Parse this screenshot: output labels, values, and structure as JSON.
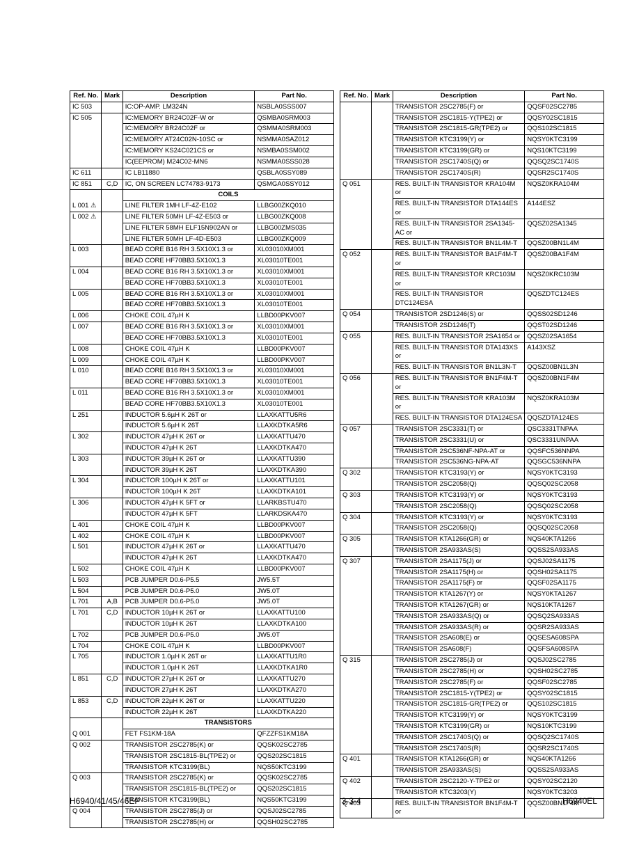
{
  "headers": {
    "ref": "Ref. No.",
    "mark": "Mark",
    "desc": "Description",
    "part": "Part No."
  },
  "sections": {
    "coils": "COILS",
    "transistors": "TRANSISTORS"
  },
  "footer": {
    "left": "H6940/41/45/46EP",
    "center": "3-3-4",
    "right": "H6940EL"
  },
  "left_ics": [
    {
      "r": "IC 503",
      "m": "",
      "d": "IC:OP-AMP. LM324N",
      "p": "NSBLA0SSS007"
    },
    {
      "r": "IC 505",
      "m": "",
      "d": "IC:MEMORY BR24C02F-W or",
      "p": "QSMBA0SRM003"
    },
    {
      "r": "",
      "m": "",
      "d": "IC:MEMORY BR24C02F or",
      "p": "QSMMA0SRM003"
    },
    {
      "r": "",
      "m": "",
      "d": "IC:MEMORY AT24C02N-10SC or",
      "p": "NSMMA0SAZ012"
    },
    {
      "r": "",
      "m": "",
      "d": "IC:MEMORY KS24C021CS or",
      "p": "NSMBA0SSM002"
    },
    {
      "r": "",
      "m": "",
      "d": "IC(EEPROM) M24C02-MN6",
      "p": "NSMMA0SSS028"
    },
    {
      "r": "IC 611",
      "m": "",
      "d": "IC LB11880",
      "p": "QSBLA0SSY089"
    },
    {
      "r": "IC 851",
      "m": "C,D",
      "d": "IC, ON SCREEN LC74783-9173",
      "p": "QSMGA0SSY012"
    }
  ],
  "left_coils": [
    {
      "r": "L 001 ⚠",
      "m": "",
      "d": "LINE FILTER 1MH LF-4Z-E102",
      "p": "LLBG00ZKQ010"
    },
    {
      "r": "L 002 ⚠",
      "m": "",
      "d": "LINE FILTER 50MH LF-4Z-E503 or",
      "p": "LLBG00ZKQ008"
    },
    {
      "r": "",
      "m": "",
      "d": "LINE FILTER 58MH ELF15N902AN or",
      "p": "LLBG00ZMS035"
    },
    {
      "r": "",
      "m": "",
      "d": "LINE FILTER 50MH LF-4D-E503",
      "p": "LLBG00ZKQ009"
    },
    {
      "r": "L 003",
      "m": "",
      "d": "BEAD CORE B16 RH 3.5X10X1.3 or",
      "p": "XL03010XM001"
    },
    {
      "r": "",
      "m": "",
      "d": "BEAD CORE HF70BB3.5X10X1.3",
      "p": "XL03010TE001"
    },
    {
      "r": "L 004",
      "m": "",
      "d": "BEAD CORE B16 RH 3.5X10X1.3 or",
      "p": "XL03010XM001"
    },
    {
      "r": "",
      "m": "",
      "d": "BEAD CORE HF70BB3.5X10X1.3",
      "p": "XL03010TE001"
    },
    {
      "r": "L 005",
      "m": "",
      "d": "BEAD CORE B16 RH 3.5X10X1.3 or",
      "p": "XL03010XM001"
    },
    {
      "r": "",
      "m": "",
      "d": "BEAD CORE HF70BB3.5X10X1.3",
      "p": "XL03010TE001"
    },
    {
      "r": "L 006",
      "m": "",
      "d": "CHOKE COIL 47µH K",
      "p": "LLBD00PKV007"
    },
    {
      "r": "L 007",
      "m": "",
      "d": "BEAD CORE B16 RH 3.5X10X1.3 or",
      "p": "XL03010XM001"
    },
    {
      "r": "",
      "m": "",
      "d": "BEAD CORE HF70BB3.5X10X1.3",
      "p": "XL03010TE001"
    },
    {
      "r": "L 008",
      "m": "",
      "d": "CHOKE COIL 47µH K",
      "p": "LLBD00PKV007"
    },
    {
      "r": "L 009",
      "m": "",
      "d": "CHOKE COIL 47µH K",
      "p": "LLBD00PKV007"
    },
    {
      "r": "L 010",
      "m": "",
      "d": "BEAD CORE B16 RH 3.5X10X1.3 or",
      "p": "XL03010XM001"
    },
    {
      "r": "",
      "m": "",
      "d": "BEAD CORE HF70BB3.5X10X1.3",
      "p": "XL03010TE001"
    },
    {
      "r": "L 011",
      "m": "",
      "d": "BEAD CORE B16 RH 3.5X10X1.3 or",
      "p": "XL03010XM001"
    },
    {
      "r": "",
      "m": "",
      "d": "BEAD CORE HF70BB3.5X10X1.3",
      "p": "XL03010TE001"
    },
    {
      "r": "L 251",
      "m": "",
      "d": "INDUCTOR 5.6µH K 26T or",
      "p": "LLAXKATTU5R6"
    },
    {
      "r": "",
      "m": "",
      "d": "INDUCTOR 5.6µH K 26T",
      "p": "LLAXKDTKA5R6"
    },
    {
      "r": "L 302",
      "m": "",
      "d": "INDUCTOR 47µH K 26T or",
      "p": "LLAXKATTU470"
    },
    {
      "r": "",
      "m": "",
      "d": "INDUCTOR 47µH K 26T",
      "p": "LLAXKDTKA470"
    },
    {
      "r": "L 303",
      "m": "",
      "d": "INDUCTOR 39µH K 26T or",
      "p": "LLAXKATTU390"
    },
    {
      "r": "",
      "m": "",
      "d": "INDUCTOR 39µH K 26T",
      "p": "LLAXKDTKA390"
    },
    {
      "r": "L 304",
      "m": "",
      "d": "INDUCTOR 100µH K 26T or",
      "p": "LLAXKATTU101"
    },
    {
      "r": "",
      "m": "",
      "d": "INDUCTOR 100µH K 26T",
      "p": "LLAXKDTKA101"
    },
    {
      "r": "L 306",
      "m": "",
      "d": "INDUCTOR 47µH K 5FT or",
      "p": "LLARKBSTU470"
    },
    {
      "r": "",
      "m": "",
      "d": "INDUCTOR 47µH K 5FT",
      "p": "LLARKDSKA470"
    },
    {
      "r": "L 401",
      "m": "",
      "d": "CHOKE COIL 47µH K",
      "p": "LLBD00PKV007"
    },
    {
      "r": "L 402",
      "m": "",
      "d": "CHOKE COIL 47µH K",
      "p": "LLBD00PKV007"
    },
    {
      "r": "L 501",
      "m": "",
      "d": "INDUCTOR 47µH K 26T or",
      "p": "LLAXKATTU470"
    },
    {
      "r": "",
      "m": "",
      "d": "INDUCTOR 47µH K 26T",
      "p": "LLAXKDTKA470"
    },
    {
      "r": "L 502",
      "m": "",
      "d": "CHOKE COIL 47µH K",
      "p": "LLBD00PKV007"
    },
    {
      "r": "L 503",
      "m": "",
      "d": "PCB JUMPER D0.6-P5.5",
      "p": "JW5.5T"
    },
    {
      "r": "L 504",
      "m": "",
      "d": "PCB JUMPER D0.6-P5.0",
      "p": "JW5.0T"
    },
    {
      "r": "L 701",
      "m": "A,B",
      "d": "PCB JUMPER D0.6-P5.0",
      "p": "JW5.0T"
    },
    {
      "r": "L 701",
      "m": "C,D",
      "d": "INDUCTOR 10µH K 26T or",
      "p": "LLAXKATTU100"
    },
    {
      "r": "",
      "m": "",
      "d": "INDUCTOR 10µH K 26T",
      "p": "LLAXKDTKA100"
    },
    {
      "r": "L 702",
      "m": "",
      "d": "PCB JUMPER D0.6-P5.0",
      "p": "JW5.0T"
    },
    {
      "r": "L 704",
      "m": "",
      "d": "CHOKE COIL 47µH K",
      "p": "LLBD00PKV007"
    },
    {
      "r": "L 705",
      "m": "",
      "d": "INDUCTOR 1.0µH K 26T or",
      "p": "LLAXKATTU1R0"
    },
    {
      "r": "",
      "m": "",
      "d": "INDUCTOR 1.0µH K 26T",
      "p": "LLAXKDTKA1R0"
    },
    {
      "r": "L 851",
      "m": "C,D",
      "d": "INDUCTOR 27µH K 26T or",
      "p": "LLAXKATTU270"
    },
    {
      "r": "",
      "m": "",
      "d": "INDUCTOR 27µH K 26T",
      "p": "LLAXKDTKA270"
    },
    {
      "r": "L 853",
      "m": "C,D",
      "d": "INDUCTOR 22µH K 26T or",
      "p": "LLAXKATTU220"
    },
    {
      "r": "",
      "m": "",
      "d": "INDUCTOR 22µH K 26T",
      "p": "LLAXKDTKA220"
    }
  ],
  "left_trans": [
    {
      "r": "Q 001",
      "m": "",
      "d": "FET FS1KM-18A",
      "p": "QFZZFS1KM18A"
    },
    {
      "r": "Q 002",
      "m": "",
      "d": "TRANSISTOR 2SC2785(K) or",
      "p": "QQSK02SC2785"
    },
    {
      "r": "",
      "m": "",
      "d": "TRANSISTOR 2SC1815-BL(TPE2) or",
      "p": "QQS202SC1815"
    },
    {
      "r": "",
      "m": "",
      "d": "TRANSISTOR KTC3199(BL)",
      "p": "NQS50KTC3199"
    },
    {
      "r": "Q 003",
      "m": "",
      "d": "TRANSISTOR 2SC2785(K) or",
      "p": "QQSK02SC2785"
    },
    {
      "r": "",
      "m": "",
      "d": "TRANSISTOR 2SC1815-BL(TPE2) or",
      "p": "QQS202SC1815"
    },
    {
      "r": "",
      "m": "",
      "d": "TRANSISTOR KTC3199(BL)",
      "p": "NQS50KTC3199"
    },
    {
      "r": "Q 004",
      "m": "",
      "d": "TRANSISTOR 2SC2785(J) or",
      "p": "QQSJ02SC2785"
    },
    {
      "r": "",
      "m": "",
      "d": "TRANSISTOR 2SC2785(H) or",
      "p": "QQSH02SC2785"
    }
  ],
  "right": [
    {
      "r": "",
      "m": "",
      "d": "TRANSISTOR 2SC2785(F) or",
      "p": "QQSF02SC2785"
    },
    {
      "r": "",
      "m": "",
      "d": "TRANSISTOR 2SC1815-Y(TPE2) or",
      "p": "QQSY02SC1815"
    },
    {
      "r": "",
      "m": "",
      "d": "TRANSISTOR 2SC1815-GR(TPE2) or",
      "p": "QQS102SC1815"
    },
    {
      "r": "",
      "m": "",
      "d": "TRANSISTOR KTC3199(Y) or",
      "p": "NQSY0KTC3199"
    },
    {
      "r": "",
      "m": "",
      "d": "TRANSISTOR KTC3199(GR) or",
      "p": "NQS10KTC3199"
    },
    {
      "r": "",
      "m": "",
      "d": "TRANSISTOR 2SC1740S(Q) or",
      "p": "QQSQ2SC1740S"
    },
    {
      "r": "",
      "m": "",
      "d": "TRANSISTOR 2SC1740S(R)",
      "p": "QQSR2SC1740S"
    },
    {
      "r": "Q 051",
      "m": "",
      "d": "RES. BUILT-IN TRANSISTOR KRA104M or",
      "p": "NQSZ0KRA104M",
      "ind": 1
    },
    {
      "r": "",
      "m": "",
      "d": "RES. BUILT-IN TRANSISTOR DTA144ES or",
      "p": "A144ESZ",
      "ind": 1
    },
    {
      "r": "",
      "m": "",
      "d": "RES. BUILT-IN TRANSISTOR 2SA1345-AC or",
      "p": "QQSZ02SA1345",
      "ind": 1
    },
    {
      "r": "",
      "m": "",
      "d": "RES. BUILT-IN TRANSISTOR BN1L4M-T",
      "p": "QQSZ00BN1L4M"
    },
    {
      "r": "Q 052",
      "m": "",
      "d": "RES. BUILT-IN TRANSISTOR BA1F4M-T or",
      "p": "QQSZ00BA1F4M",
      "ind": 1
    },
    {
      "r": "",
      "m": "",
      "d": "RES. BUILT-IN TRANSISTOR KRC103M or",
      "p": "NQSZ0KRC103M",
      "ind": 1
    },
    {
      "r": "",
      "m": "",
      "d": "RES. BUILT-IN TRANSISTOR DTC124ESA",
      "p": "QQSZDTC124ES",
      "ind": 1
    },
    {
      "r": "Q 054",
      "m": "",
      "d": "TRANSISTOR 2SD1246(S) or",
      "p": "QQSS02SD1246"
    },
    {
      "r": "",
      "m": "",
      "d": "TRANSISTOR 2SD1246(T)",
      "p": "QQST02SD1246"
    },
    {
      "r": "Q 055",
      "m": "",
      "d": "RES. BUILT-IN TRANSISTOR 2SA1654 or",
      "p": "QQSZ02SA1654"
    },
    {
      "r": "",
      "m": "",
      "d": "RES. BUILT-IN TRANSISTOR DTA143XS or",
      "p": "A143XSZ",
      "ind": 1
    },
    {
      "r": "",
      "m": "",
      "d": "RES. BUILT-IN TRANSISTOR BN1L3N-T",
      "p": "QQSZ00BN1L3N"
    },
    {
      "r": "Q 056",
      "m": "",
      "d": "RES. BUILT-IN TRANSISTOR BN1F4M-T or",
      "p": "QQSZ00BN1F4M",
      "ind": 1
    },
    {
      "r": "",
      "m": "",
      "d": "RES. BUILT-IN TRANSISTOR KRA103M or",
      "p": "NQSZ0KRA103M",
      "ind": 1
    },
    {
      "r": "",
      "m": "",
      "d": "RES. BUILT-IN TRANSISTOR DTA124ESA",
      "p": "QQSZDTA124ES",
      "ind": 1
    },
    {
      "r": "Q 057",
      "m": "",
      "d": "TRANSISTOR 2SC3331(T) or",
      "p": "QSC3331TNPAA"
    },
    {
      "r": "",
      "m": "",
      "d": "TRANSISTOR 2SC3331(U) or",
      "p": "QSC3331UNPAA"
    },
    {
      "r": "",
      "m": "",
      "d": "TRANSISTOR 2SC536NF-NPA-AT or",
      "p": "QQSFC536NNPA"
    },
    {
      "r": "",
      "m": "",
      "d": "TRANSISTOR 2SC536NG-NPA-AT",
      "p": "QQSGC536NNPA"
    },
    {
      "r": "Q 302",
      "m": "",
      "d": "TRANSISTOR KTC3193(Y) or",
      "p": "NQSY0KTC3193"
    },
    {
      "r": "",
      "m": "",
      "d": "TRANSISTOR 2SC2058(Q)",
      "p": "QQSQ02SC2058"
    },
    {
      "r": "Q 303",
      "m": "",
      "d": "TRANSISTOR KTC3193(Y) or",
      "p": "NQSY0KTC3193"
    },
    {
      "r": "",
      "m": "",
      "d": "TRANSISTOR 2SC2058(Q)",
      "p": "QQSQ02SC2058"
    },
    {
      "r": "Q 304",
      "m": "",
      "d": "TRANSISTOR KTC3193(Y) or",
      "p": "NQSY0KTC3193"
    },
    {
      "r": "",
      "m": "",
      "d": "TRANSISTOR 2SC2058(Q)",
      "p": "QQSQ02SC2058"
    },
    {
      "r": "Q 305",
      "m": "",
      "d": "TRANSISTOR KTA1266(GR) or",
      "p": "NQS40KTA1266"
    },
    {
      "r": "",
      "m": "",
      "d": "TRANSISTOR 2SA933AS(S)",
      "p": "QQSS2SA933AS"
    },
    {
      "r": "Q 307",
      "m": "",
      "d": "TRANSISTOR 2SA1175(J) or",
      "p": "QQSJ02SA1175"
    },
    {
      "r": "",
      "m": "",
      "d": "TRANSISTOR 2SA1175(H) or",
      "p": "QQSH02SA1175"
    },
    {
      "r": "",
      "m": "",
      "d": "TRANSISTOR 2SA1175(F) or",
      "p": "QQSF02SA1175"
    },
    {
      "r": "",
      "m": "",
      "d": "TRANSISTOR KTA1267(Y) or",
      "p": "NQSY0KTA1267"
    },
    {
      "r": "",
      "m": "",
      "d": "TRANSISTOR KTA1267(GR) or",
      "p": "NQS10KTA1267"
    },
    {
      "r": "",
      "m": "",
      "d": "TRANSISTOR 2SA933AS(Q) or",
      "p": "QQSQ2SA933AS"
    },
    {
      "r": "",
      "m": "",
      "d": "TRANSISTOR 2SA933AS(R) or",
      "p": "QQSR2SA933AS"
    },
    {
      "r": "",
      "m": "",
      "d": "TRANSISTOR 2SA608(E) or",
      "p": "QQSESA608SPA"
    },
    {
      "r": "",
      "m": "",
      "d": "TRANSISTOR 2SA608(F)",
      "p": "QQSFSA608SPA"
    },
    {
      "r": "Q 315",
      "m": "",
      "d": "TRANSISTOR 2SC2785(J) or",
      "p": "QQSJ02SC2785"
    },
    {
      "r": "",
      "m": "",
      "d": "TRANSISTOR 2SC2785(H) or",
      "p": "QQSH02SC2785"
    },
    {
      "r": "",
      "m": "",
      "d": "TRANSISTOR 2SC2785(F) or",
      "p": "QQSF02SC2785"
    },
    {
      "r": "",
      "m": "",
      "d": "TRANSISTOR 2SC1815-Y(TPE2) or",
      "p": "QQSY02SC1815"
    },
    {
      "r": "",
      "m": "",
      "d": "TRANSISTOR 2SC1815-GR(TPE2) or",
      "p": "QQS102SC1815"
    },
    {
      "r": "",
      "m": "",
      "d": "TRANSISTOR KTC3199(Y) or",
      "p": "NQSY0KTC3199"
    },
    {
      "r": "",
      "m": "",
      "d": "TRANSISTOR KTC3199(GR) or",
      "p": "NQS10KTC3199"
    },
    {
      "r": "",
      "m": "",
      "d": "TRANSISTOR 2SC1740S(Q) or",
      "p": "QQSQ2SC1740S"
    },
    {
      "r": "",
      "m": "",
      "d": "TRANSISTOR 2SC1740S(R)",
      "p": "QQSR2SC1740S"
    },
    {
      "r": "Q 401",
      "m": "",
      "d": "TRANSISTOR KTA1266(GR) or",
      "p": "NQS40KTA1266"
    },
    {
      "r": "",
      "m": "",
      "d": "TRANSISTOR 2SA933AS(S)",
      "p": "QQSS2SA933AS"
    },
    {
      "r": "Q 402",
      "m": "",
      "d": "TRANSISTOR 2SC2120-Y-TPE2 or",
      "p": "QQSY02SC2120"
    },
    {
      "r": "",
      "m": "",
      "d": "TRANSISTOR KTC3203(Y)",
      "p": "NQSY0KTC3203"
    },
    {
      "r": "Q 403",
      "m": "",
      "d": "RES. BUILT-IN TRANSISTOR BN1F4M-T or",
      "p": "QQSZ00BN1F4M",
      "ind": 1
    }
  ]
}
